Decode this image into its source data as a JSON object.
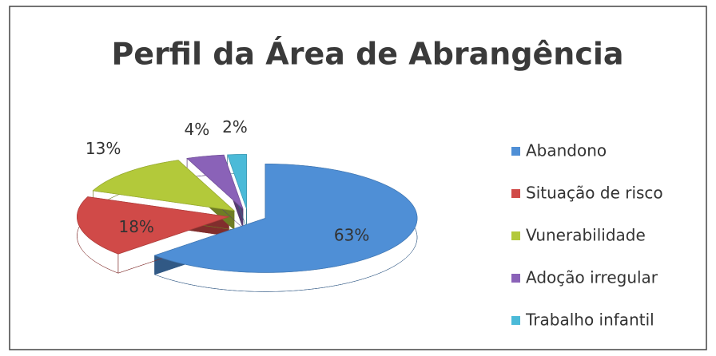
{
  "chart_data": {
    "type": "pie",
    "title": "Perfil da Área de Abrangência",
    "categories": [
      "Abandono",
      "Situação de risco",
      "Vunerabilidade",
      "Adoção irregular",
      "Trabalho infantil"
    ],
    "values": [
      63,
      18,
      13,
      4,
      2
    ],
    "value_labels": [
      "63%",
      "18%",
      "13%",
      "4%",
      "2%"
    ],
    "colors": [
      "#4f8fd6",
      "#d04a48",
      "#b3c93a",
      "#8a62b8",
      "#4bbad8"
    ],
    "legend": "right"
  }
}
